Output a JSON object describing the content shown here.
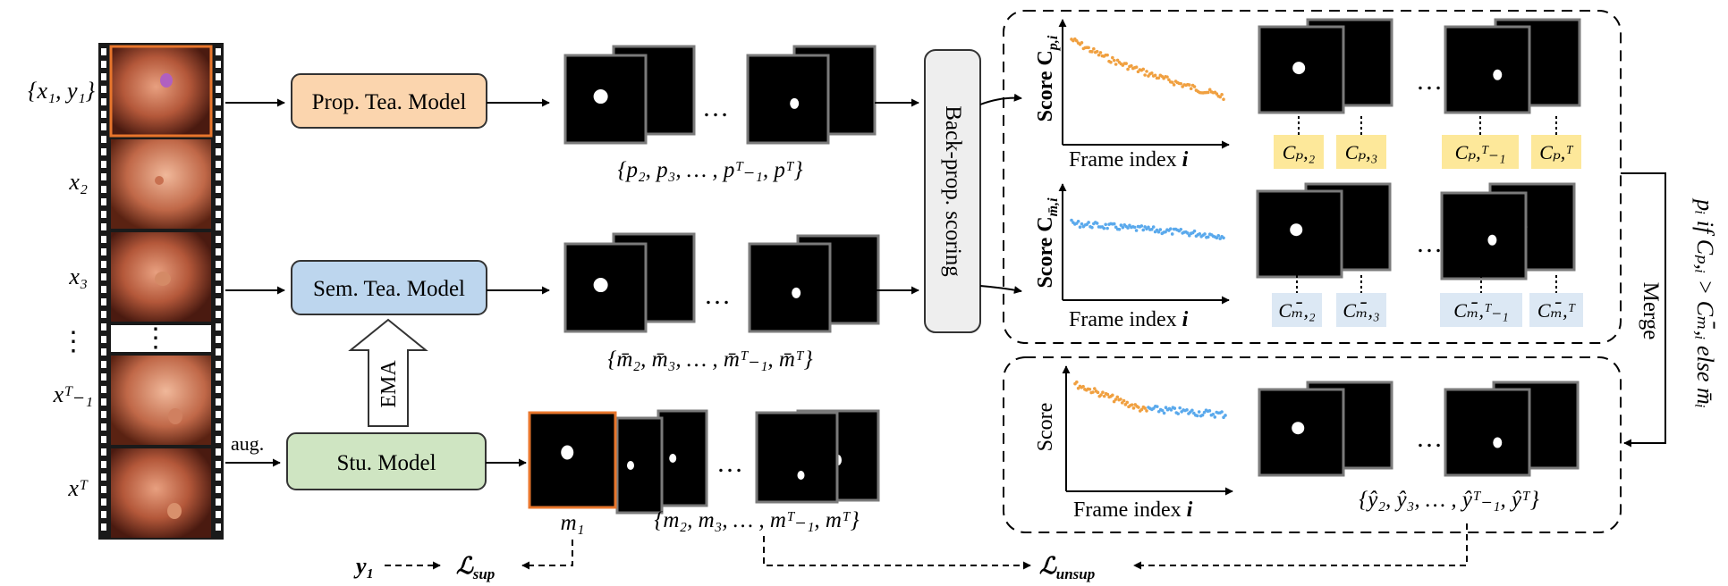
{
  "frames": {
    "labels": [
      "{x₁, y₁}",
      "x₂",
      "x₃",
      "xᵀ₋₁",
      "xᵀ"
    ],
    "dots": "⋮"
  },
  "models": {
    "prop_teacher": "Prop. Tea. Model",
    "sem_teacher": "Sem. Tea. Model",
    "student": "Stu. Model",
    "ema": "EMA",
    "aug": "aug."
  },
  "colors": {
    "prop_fill": "#fbd5ae",
    "sem_fill": "#bdd6ee",
    "stu_fill": "#cfe5c2",
    "orange": "#f0a040",
    "blue": "#5aa9ec",
    "yellow_tag": "#fde89a",
    "blue_tag": "#dce8f4",
    "highlight_border": "#e8762c"
  },
  "masks": {
    "prop_set": "{p₂, p₃, … , pᵀ₋₁, pᵀ}",
    "sem_set": "{m̄₂, m̄₃, … , m̄ᵀ₋₁, m̄ᵀ}",
    "m1": "m₁",
    "stu_set": "{m₂, m₃, … , mᵀ₋₁, mᵀ}",
    "merged_set": "{ŷ₂, ŷ₃, … , ŷᵀ₋₁, ŷᵀ}",
    "ellipsis": "…"
  },
  "scoring": {
    "label": "Back-prop. scoring"
  },
  "plots": {
    "prop_ylabel": "Score C",
    "prop_ysub": "p,i",
    "sem_ylabel": "Score C",
    "sem_ysub": "m̄,i",
    "merged_ylabel": "Score",
    "xlabel": "Frame index",
    "xvar": "i"
  },
  "tags": {
    "prop": [
      "Cₚ,₂",
      "Cₚ,₃",
      "Cₚ,ᵀ₋₁",
      "Cₚ,ᵀ"
    ],
    "sem": [
      "Cₘ̄,₂",
      "Cₘ̄,₃",
      "Cₘ̄,ᵀ₋₁",
      "Cₘ̄,ᵀ"
    ]
  },
  "merge": {
    "label": "Merge",
    "rule": "pᵢ if Cₚ,ᵢ > Cₘ̄,ᵢ else m̄ᵢ"
  },
  "losses": {
    "y1": "y₁",
    "sup": "ℒ",
    "sup_sub": "sup",
    "unsup": "ℒ",
    "unsup_sub": "unsup"
  }
}
